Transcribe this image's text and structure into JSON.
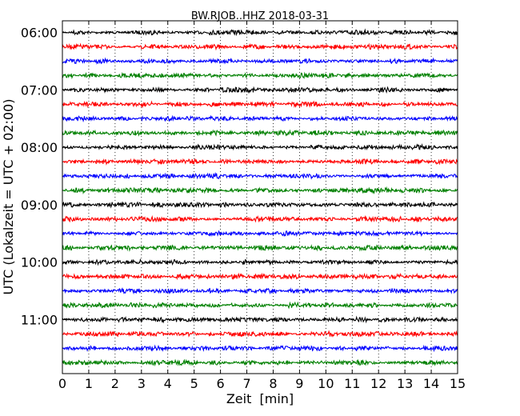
{
  "chart_data": {
    "type": "line",
    "title": "BW.RJOB..HHZ 2018-03-31",
    "xlabel": "Zeit  [min]",
    "ylabel": "UTC (Lokalzeit = UTC + 02:00)",
    "xlim": [
      0,
      15
    ],
    "x_ticks": [
      "0",
      "1",
      "2",
      "3",
      "4",
      "5",
      "6",
      "7",
      "8",
      "9",
      "10",
      "11",
      "12",
      "13",
      "14",
      "15"
    ],
    "y_ticks": [
      "06:00",
      "07:00",
      "08:00",
      "09:00",
      "10:00",
      "11:00"
    ],
    "grid": "vertical dotted at each minute",
    "trace_interval_min": 15,
    "trace_colors": [
      "#000000",
      "#ff0000",
      "#0000ff",
      "#008000"
    ],
    "trace_start_times": [
      "06:00",
      "06:15",
      "06:30",
      "06:45",
      "07:00",
      "07:15",
      "07:30",
      "07:45",
      "08:00",
      "08:15",
      "08:30",
      "08:45",
      "09:00",
      "09:15",
      "09:30",
      "09:45",
      "10:00",
      "10:15",
      "10:30",
      "10:45",
      "11:00",
      "11:15",
      "11:30",
      "11:45"
    ]
  }
}
